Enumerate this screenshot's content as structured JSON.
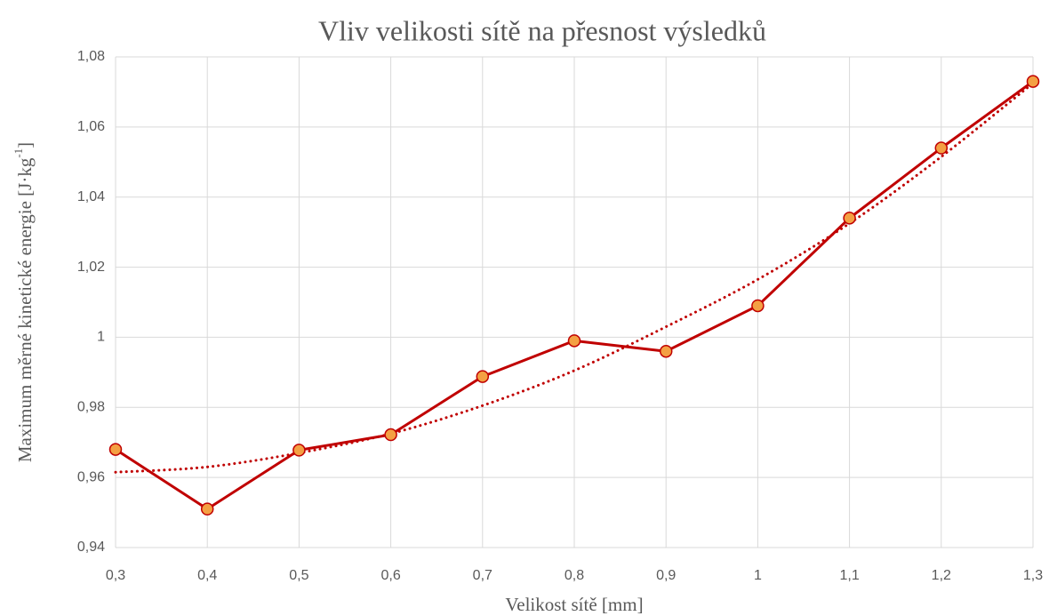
{
  "chart_data": {
    "type": "line",
    "title": "Vliv velikosti sítě na přesnost výsledků",
    "x_label": "Velikost sítě [mm]",
    "y_label": "Maximum měrné kinetické energie [J·kg",
    "y_label_sup": "-1",
    "y_label_end": "]",
    "x": [
      0.3,
      0.4,
      0.5,
      0.6,
      0.7,
      0.8,
      0.9,
      1.0,
      1.1,
      1.2,
      1.3
    ],
    "series": [
      {
        "color": "#c00000",
        "marker_fill": "#f4a043",
        "values": [
          0.968,
          0.951,
          0.9678,
          0.9722,
          0.9888,
          0.999,
          0.996,
          1.009,
          1.034,
          1.054,
          1.073
        ]
      }
    ],
    "trendline": {
      "color": "#c00000",
      "style": "dotted",
      "values": [
        0.9615,
        0.963,
        0.967,
        0.9725,
        0.9805,
        0.9905,
        1.003,
        1.0165,
        1.0325,
        1.0515,
        1.0725
      ]
    },
    "xlim": [
      0.3,
      1.3
    ],
    "xticks": [
      {
        "value": 0.3,
        "label": "0,3"
      },
      {
        "value": 0.4,
        "label": "0,4"
      },
      {
        "value": 0.5,
        "label": "0,5"
      },
      {
        "value": 0.6,
        "label": "0,6"
      },
      {
        "value": 0.7,
        "label": "0,7"
      },
      {
        "value": 0.8,
        "label": "0,8"
      },
      {
        "value": 0.9,
        "label": "0,9"
      },
      1,
      {
        "value": 1.1,
        "label": "1,1"
      },
      {
        "value": 1.2,
        "label": "1,2"
      },
      {
        "value": 1.3,
        "label": "1,3"
      }
    ],
    "ylim": [
      0.94,
      1.08
    ],
    "yticks": [
      {
        "value": 0.94,
        "label": "0,94"
      },
      {
        "value": 0.96,
        "label": "0,96"
      },
      {
        "value": 0.98,
        "label": "0,98"
      },
      1,
      {
        "value": 1.02,
        "label": "1,02"
      },
      {
        "value": 1.04,
        "label": "1,04"
      },
      {
        "value": 1.06,
        "label": "1,06"
      },
      {
        "value": 1.08,
        "label": "1,08"
      }
    ],
    "grid": true
  }
}
